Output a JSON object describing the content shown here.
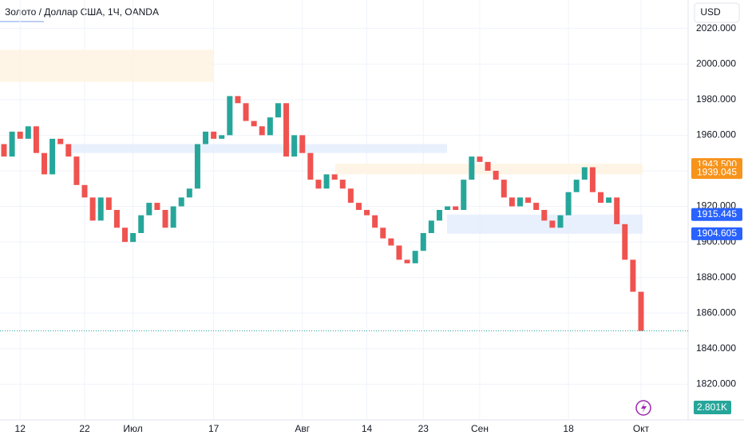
{
  "chart_data": {
    "type": "candlestick",
    "title": "Золото / Доллар США, 1Ч, OANDA",
    "currency": "USD",
    "categories": [
      null,
      null,
      "12",
      null,
      null,
      null,
      null,
      null,
      null,
      null,
      "22",
      null,
      null,
      null,
      null,
      null,
      "Июл",
      null,
      null,
      null,
      null,
      null,
      null,
      null,
      null,
      null,
      "17",
      null,
      null,
      null,
      null,
      null,
      null,
      null,
      null,
      null,
      null,
      "Авг",
      null,
      null,
      null,
      null,
      null,
      null,
      null,
      "14",
      null,
      null,
      null,
      null,
      null,
      null,
      "23",
      null,
      null,
      null,
      null,
      null,
      null,
      "Сен",
      null,
      null,
      null,
      null,
      null,
      null,
      null,
      null,
      null,
      null,
      "18",
      null,
      null,
      null,
      null,
      null,
      null,
      null,
      null,
      "Окт"
    ],
    "open": [
      1955,
      1948,
      1962,
      1958,
      1965,
      1950,
      1938,
      1958,
      1955,
      1948,
      1932,
      1925,
      1912,
      1925,
      1918,
      1908,
      1900,
      1905,
      1915,
      1922,
      1918,
      1908,
      1920,
      1925,
      1930,
      1955,
      1962,
      1958,
      1960,
      1982,
      1978,
      1968,
      1965,
      1960,
      1970,
      1978,
      1948,
      1960,
      1950,
      1935,
      1930,
      1938,
      1935,
      1930,
      1922,
      1918,
      1915,
      1908,
      1902,
      1898,
      1890,
      1888,
      1895,
      1905,
      1912,
      1918,
      1920,
      1918,
      1935,
      1948,
      1945,
      1940,
      1935,
      1925,
      1920,
      1925,
      1922,
      1918,
      1912,
      1908,
      1915,
      1928,
      1935,
      1942,
      1928,
      1922,
      1925,
      1910,
      1890,
      1872
    ],
    "close": [
      1948,
      1962,
      1958,
      1965,
      1950,
      1938,
      1958,
      1955,
      1948,
      1932,
      1925,
      1912,
      1925,
      1918,
      1908,
      1900,
      1905,
      1915,
      1922,
      1918,
      1908,
      1920,
      1925,
      1930,
      1955,
      1962,
      1958,
      1960,
      1982,
      1978,
      1968,
      1965,
      1960,
      1970,
      1978,
      1948,
      1960,
      1950,
      1935,
      1930,
      1938,
      1935,
      1930,
      1922,
      1918,
      1915,
      1908,
      1902,
      1898,
      1890,
      1888,
      1895,
      1905,
      1912,
      1918,
      1920,
      1918,
      1935,
      1948,
      1945,
      1940,
      1935,
      1925,
      1920,
      1925,
      1922,
      1918,
      1912,
      1908,
      1915,
      1928,
      1935,
      1942,
      1928,
      1922,
      1925,
      1910,
      1890,
      1872,
      1850
    ],
    "up_color": "#26a69a",
    "down_color": "#ef5350",
    "ylim": [
      1800,
      2036
    ],
    "yticks": [
      {
        "value": 2020,
        "label": "2020.000"
      },
      {
        "value": 2000,
        "label": "2000.000"
      },
      {
        "value": 1980,
        "label": "1980.000"
      },
      {
        "value": 1960,
        "label": "1960.000"
      },
      {
        "value": 1940,
        "label": "1940.000"
      },
      {
        "value": 1920,
        "label": "1920.000"
      },
      {
        "value": 1900,
        "label": "1900.000"
      },
      {
        "value": 1880,
        "label": "1880.000"
      },
      {
        "value": 1860,
        "label": "1860.000"
      },
      {
        "value": 1840,
        "label": "1840.000"
      },
      {
        "value": 1820,
        "label": "1820.000"
      }
    ],
    "zones": [
      {
        "low": 1990,
        "high": 2008,
        "color": "#fff3e0"
      },
      {
        "low": 1950,
        "high": 1955,
        "color": "#e3ecfd"
      },
      {
        "low": 1938,
        "high": 1944,
        "color": "#fff3e0"
      },
      {
        "low": 1904.6,
        "high": 1915.4,
        "color": "#e3ecfd"
      }
    ],
    "price_tags": [
      {
        "value": 1943.5,
        "label": "1943.500",
        "color": "#f7931a"
      },
      {
        "value": 1939.045,
        "label": "1939.045",
        "color": "#f7931a"
      },
      {
        "value": 1915.445,
        "label": "1915.445",
        "color": "#2962ff"
      },
      {
        "value": 1904.605,
        "label": "1904.605",
        "color": "#2962ff"
      }
    ],
    "volume_label": "2.801K"
  }
}
